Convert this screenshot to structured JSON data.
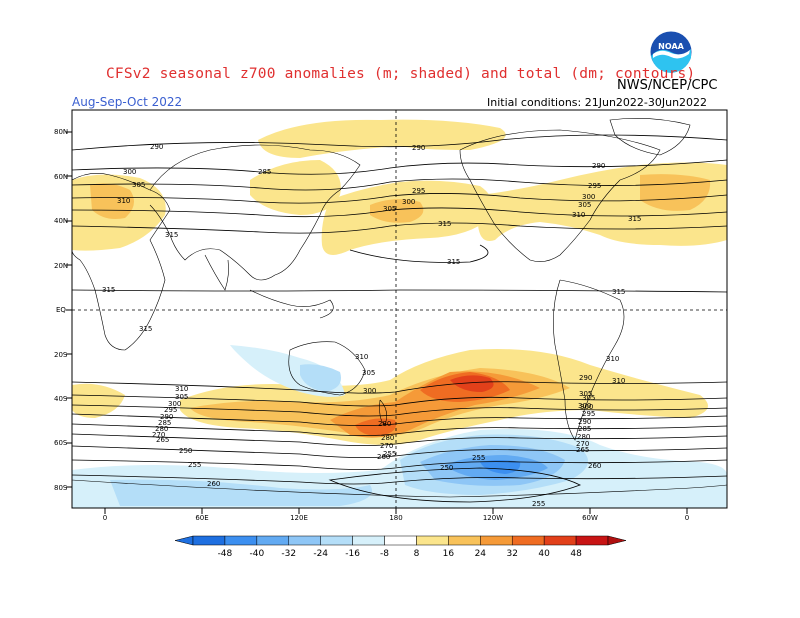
{
  "header": {
    "title": "CFSv2 seasonal z700 anomalies (m; shaded) and total (dm; contours)",
    "agency": "NWS/NCEP/CPC",
    "logo_text": "NOAA",
    "season": "Aug-Sep-Oct 2022",
    "initial_conditions": "Initial conditions: 21Jun2022-30Jun2022"
  },
  "axes": {
    "lat_labels": [
      "80N",
      "60N",
      "40N",
      "20N",
      "EQ",
      "20S",
      "40S",
      "60S",
      "80S"
    ],
    "lon_labels": [
      "0",
      "60E",
      "120E",
      "180",
      "120W",
      "60W",
      "0"
    ]
  },
  "contour_labels": [
    "290",
    "300",
    "305",
    "310",
    "285",
    "315",
    "290",
    "295",
    "300",
    "305",
    "315",
    "315",
    "290",
    "295",
    "300",
    "305",
    "310",
    "315",
    "315",
    "315",
    "315",
    "310",
    "305",
    "300",
    "310",
    "305",
    "300",
    "295",
    "290",
    "285",
    "280",
    "270",
    "265",
    "250",
    "255",
    "255",
    "250",
    "260",
    "255",
    "280",
    "260",
    "270",
    "280",
    "290",
    "300",
    "305",
    "310",
    "310",
    "305",
    "300",
    "295",
    "290",
    "285",
    "280",
    "270",
    "265",
    "260",
    "255"
  ],
  "colorbar": {
    "tick_labels": [
      "-48",
      "-40",
      "-32",
      "-24",
      "-16",
      "-8",
      "8",
      "16",
      "24",
      "32",
      "40",
      "48"
    ],
    "colors": [
      "#1e6fe0",
      "#3c8ff0",
      "#62aaf2",
      "#8ec6f6",
      "#b4def8",
      "#d6f0fa",
      "#ffffff",
      "#fbe58c",
      "#f8c25a",
      "#f59a38",
      "#ef6c22",
      "#e2401a",
      "#c81414"
    ]
  },
  "colors": {
    "title": "#e03030",
    "season": "#3a5fd0",
    "land": "#000000",
    "contour": "#000000"
  }
}
